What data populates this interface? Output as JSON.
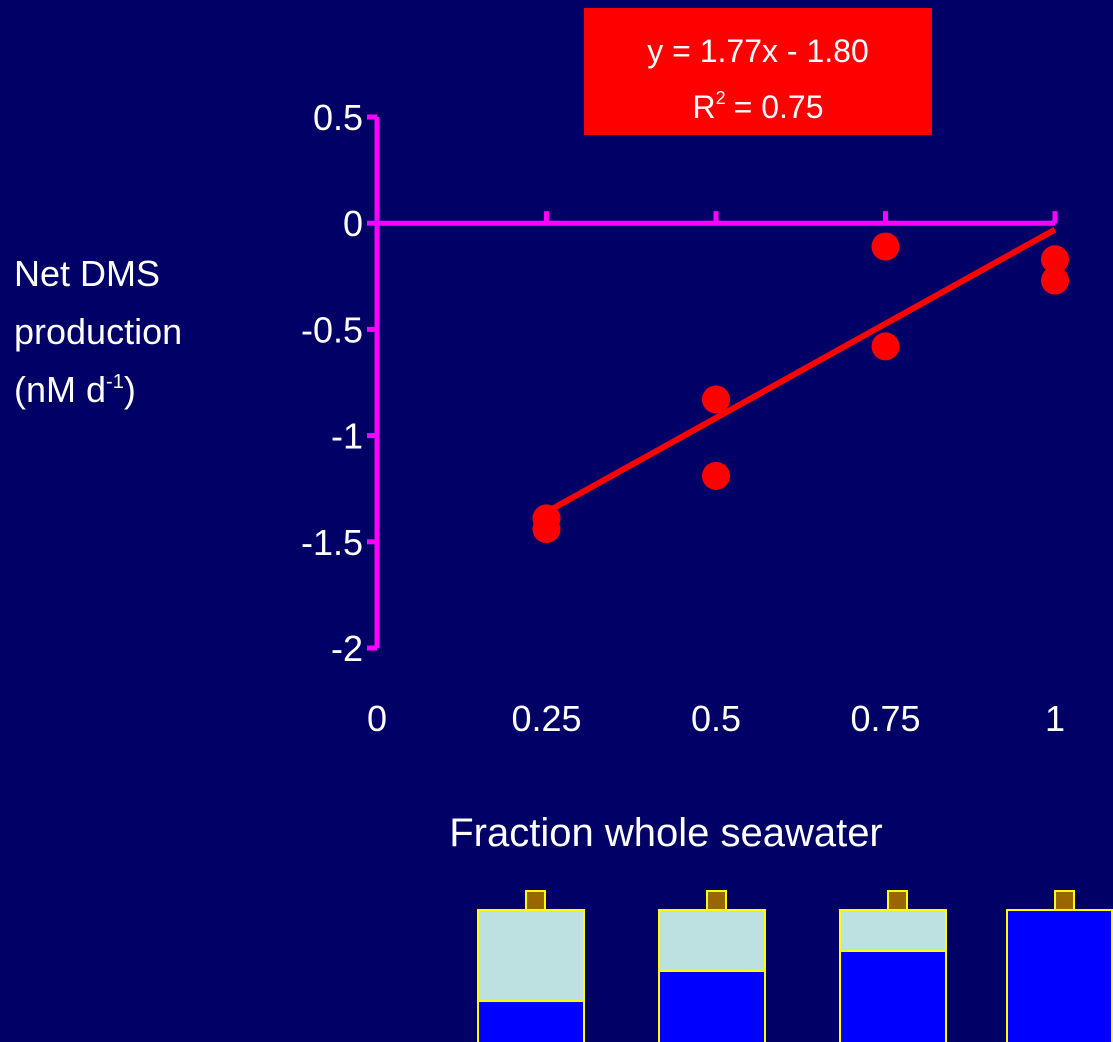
{
  "chart_data": {
    "type": "scatter",
    "equation": "y = 1.77x - 1.80",
    "r_squared": {
      "symbol": "R",
      "superscript": "2",
      "text": "= 0.75"
    },
    "ylabel_lines": [
      "Net DMS",
      "production"
    ],
    "ylabel_unit": {
      "text": "(nM d",
      "superscript": "-1",
      "end": ")"
    },
    "xlabel": "Fraction whole seawater",
    "x": [
      0.25,
      0.25,
      0.5,
      0.5,
      0.75,
      0.75,
      1,
      1
    ],
    "values": [
      -1.39,
      -1.44,
      -0.83,
      -1.19,
      -0.11,
      -0.58,
      -0.17,
      -0.27
    ],
    "color": "#ff0000",
    "trendline": {
      "x": [
        0.25,
        1
      ],
      "values": [
        -1.36,
        -0.03
      ],
      "color": "#ff0000"
    },
    "xlim": [
      0,
      1
    ],
    "xticks": [
      0,
      0.25,
      0.5,
      0.75,
      1
    ],
    "ylim": [
      -2,
      0.5
    ],
    "yticks": [
      0.5,
      0,
      -0.5,
      -1,
      -1.5,
      -2
    ],
    "axis_color": "#ff00ff"
  }
}
